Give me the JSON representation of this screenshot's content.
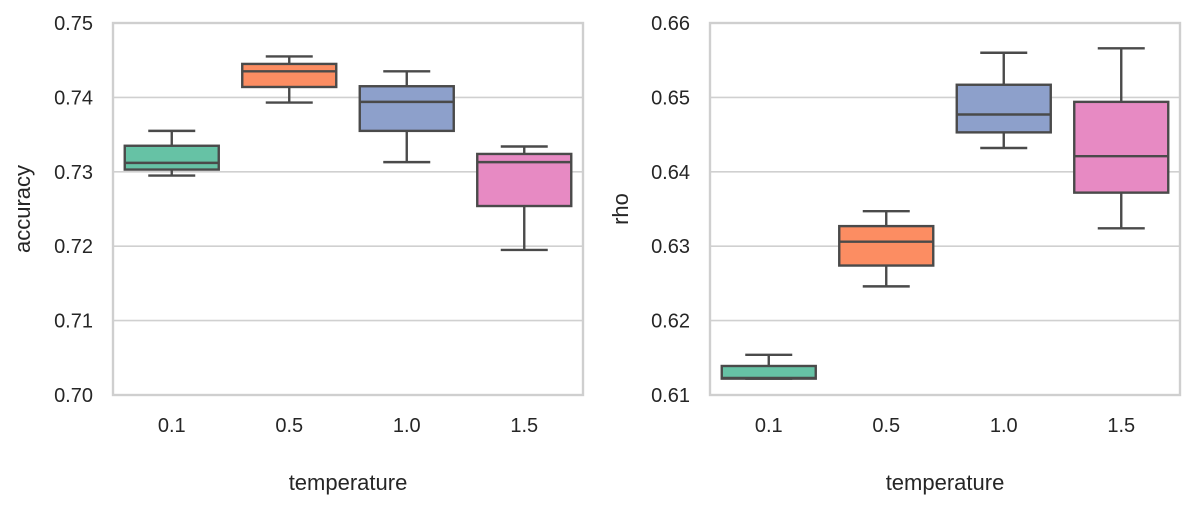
{
  "chart_data": [
    {
      "type": "box",
      "xlabel": "temperature",
      "ylabel": "accuracy",
      "ylim": [
        0.7,
        0.75
      ],
      "yticks": [
        "0.70",
        "0.71",
        "0.72",
        "0.73",
        "0.74",
        "0.75"
      ],
      "categories": [
        "0.1",
        "0.5",
        "1.0",
        "1.5"
      ],
      "grid": "horizontal",
      "boxes": [
        {
          "category": "0.1",
          "whisker_low": 0.7295,
          "q1": 0.7303,
          "median": 0.7312,
          "q3": 0.7335,
          "whisker_high": 0.7355,
          "color": "#66c2a5"
        },
        {
          "category": "0.5",
          "whisker_low": 0.7393,
          "q1": 0.7414,
          "median": 0.7435,
          "q3": 0.7445,
          "whisker_high": 0.7455,
          "color": "#fc8d62"
        },
        {
          "category": "1.0",
          "whisker_low": 0.7313,
          "q1": 0.7355,
          "median": 0.7394,
          "q3": 0.7415,
          "whisker_high": 0.7435,
          "color": "#8da0cb"
        },
        {
          "category": "1.5",
          "whisker_low": 0.7195,
          "q1": 0.7254,
          "median": 0.7313,
          "q3": 0.7324,
          "whisker_high": 0.7334,
          "color": "#e78ac3"
        }
      ]
    },
    {
      "type": "box",
      "xlabel": "temperature",
      "ylabel": "rho",
      "ylim": [
        0.61,
        0.66
      ],
      "yticks": [
        "0.61",
        "0.62",
        "0.63",
        "0.64",
        "0.65",
        "0.66"
      ],
      "categories": [
        "0.1",
        "0.5",
        "1.0",
        "1.5"
      ],
      "grid": "horizontal",
      "boxes": [
        {
          "category": "0.1",
          "whisker_low": 0.6122,
          "q1": 0.6122,
          "median": 0.6123,
          "q3": 0.6139,
          "whisker_high": 0.6154,
          "color": "#66c2a5"
        },
        {
          "category": "0.5",
          "whisker_low": 0.6246,
          "q1": 0.6274,
          "median": 0.6306,
          "q3": 0.6327,
          "whisker_high": 0.6347,
          "color": "#fc8d62"
        },
        {
          "category": "1.0",
          "whisker_low": 0.6432,
          "q1": 0.6453,
          "median": 0.6477,
          "q3": 0.6517,
          "whisker_high": 0.656,
          "color": "#8da0cb"
        },
        {
          "category": "1.5",
          "whisker_low": 0.6324,
          "q1": 0.6372,
          "median": 0.6421,
          "q3": 0.6494,
          "whisker_high": 0.6566,
          "color": "#e78ac3"
        }
      ]
    }
  ]
}
